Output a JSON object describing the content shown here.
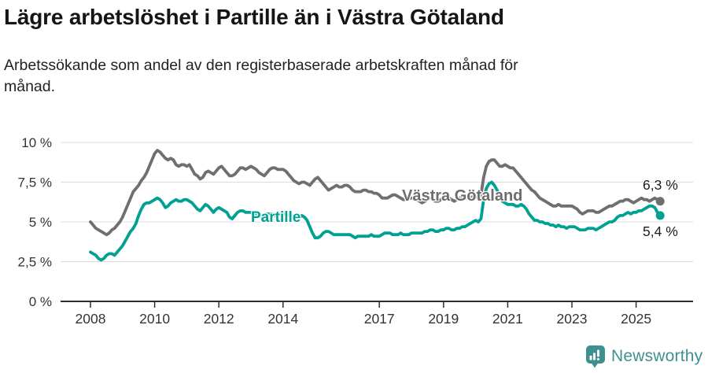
{
  "header": {
    "title": "Lägre arbetslöshet i Partille än i Västra Götaland",
    "subtitle": "Arbetssökande som andel av den registerbaserade arbetskraften månad för\nmånad."
  },
  "chart_data": {
    "type": "line",
    "title": "Lägre arbetslöshet i Partille än i Västra Götaland",
    "x_start": "2008-01",
    "x_end": "2025-10",
    "x_frequency": "monthly",
    "xticks": [
      2008,
      2010,
      2012,
      2014,
      2017,
      2019,
      2021,
      2023,
      2025
    ],
    "yticks": [
      "0 %",
      "2,5 %",
      "5 %",
      "7,5 %",
      "10 %"
    ],
    "ytick_values": [
      0,
      2.5,
      5,
      7.5,
      10
    ],
    "ylim": [
      0,
      10
    ],
    "grid": true,
    "unit": "%",
    "legend_position": "inline-labels",
    "series": [
      {
        "name": "Västra Götaland",
        "color": "#6f6f6f",
        "end_label": "6,3 %",
        "end_value": 6.3,
        "values": [
          5.0,
          4.8,
          4.6,
          4.5,
          4.4,
          4.3,
          4.2,
          4.3,
          4.5,
          4.6,
          4.8,
          5.0,
          5.3,
          5.7,
          6.1,
          6.5,
          6.9,
          7.1,
          7.3,
          7.6,
          7.8,
          8.1,
          8.5,
          8.9,
          9.3,
          9.5,
          9.4,
          9.2,
          9.0,
          8.9,
          9.0,
          8.9,
          8.6,
          8.5,
          8.6,
          8.6,
          8.5,
          8.6,
          8.3,
          8.0,
          7.9,
          7.7,
          7.8,
          8.1,
          8.2,
          8.1,
          8.0,
          8.2,
          8.4,
          8.5,
          8.3,
          8.1,
          7.9,
          7.9,
          8.0,
          8.2,
          8.4,
          8.4,
          8.3,
          8.4,
          8.5,
          8.4,
          8.3,
          8.1,
          8.0,
          7.9,
          8.1,
          8.3,
          8.4,
          8.4,
          8.3,
          8.3,
          8.3,
          8.2,
          8.0,
          7.8,
          7.6,
          7.5,
          7.4,
          7.5,
          7.5,
          7.4,
          7.3,
          7.5,
          7.7,
          7.8,
          7.6,
          7.4,
          7.2,
          7.0,
          7.1,
          7.2,
          7.3,
          7.2,
          7.2,
          7.3,
          7.3,
          7.2,
          7.0,
          6.9,
          6.9,
          6.9,
          7.0,
          7.0,
          6.9,
          6.9,
          6.8,
          6.8,
          6.7,
          6.5,
          6.5,
          6.5,
          6.6,
          6.7,
          6.7,
          6.6,
          6.5,
          6.4,
          6.4,
          6.5,
          6.5,
          6.5,
          6.4,
          6.3,
          6.2,
          6.3,
          6.4,
          6.5,
          6.4,
          6.3,
          6.3,
          6.4,
          6.5,
          6.5,
          6.5,
          6.4,
          6.3,
          6.4,
          6.5,
          6.6,
          6.5,
          6.5,
          6.5,
          6.6,
          6.6,
          6.5,
          6.7,
          7.8,
          8.5,
          8.8,
          8.9,
          8.9,
          8.7,
          8.5,
          8.5,
          8.6,
          8.5,
          8.4,
          8.4,
          8.2,
          8.0,
          7.8,
          7.6,
          7.4,
          7.2,
          7.0,
          6.9,
          6.7,
          6.5,
          6.4,
          6.3,
          6.2,
          6.1,
          6.0,
          6.0,
          6.1,
          6.0,
          6.0,
          6.0,
          6.0,
          6.0,
          5.9,
          5.8,
          5.6,
          5.5,
          5.6,
          5.7,
          5.7,
          5.7,
          5.6,
          5.6,
          5.7,
          5.8,
          5.9,
          6.0,
          6.0,
          6.1,
          6.2,
          6.3,
          6.3,
          6.4,
          6.4,
          6.3,
          6.2,
          6.3,
          6.4,
          6.5,
          6.4,
          6.4,
          6.3,
          6.4,
          6.5,
          6.4,
          6.3
        ]
      },
      {
        "name": "Partille",
        "color": "#00a192",
        "end_label": "5,4 %",
        "end_value": 5.4,
        "values": [
          3.1,
          3.0,
          2.9,
          2.7,
          2.6,
          2.7,
          2.9,
          3.0,
          3.0,
          2.9,
          3.1,
          3.3,
          3.5,
          3.8,
          4.1,
          4.4,
          4.6,
          4.9,
          5.4,
          5.8,
          6.1,
          6.2,
          6.2,
          6.3,
          6.4,
          6.5,
          6.4,
          6.2,
          5.9,
          6.0,
          6.2,
          6.3,
          6.4,
          6.3,
          6.3,
          6.4,
          6.4,
          6.3,
          6.2,
          6.0,
          5.8,
          5.7,
          5.9,
          6.1,
          6.0,
          5.8,
          5.6,
          5.8,
          5.9,
          5.8,
          5.7,
          5.6,
          5.3,
          5.2,
          5.4,
          5.6,
          5.7,
          5.7,
          5.6,
          5.6,
          5.6,
          5.5,
          5.5,
          5.4,
          5.3,
          5.4,
          5.5,
          5.5,
          5.5,
          5.4,
          5.4,
          5.5,
          5.5,
          5.5,
          5.4,
          5.4,
          5.3,
          5.3,
          5.3,
          5.4,
          5.3,
          5.1,
          4.7,
          4.3,
          4.0,
          4.0,
          4.1,
          4.3,
          4.4,
          4.4,
          4.3,
          4.2,
          4.2,
          4.2,
          4.2,
          4.2,
          4.2,
          4.2,
          4.1,
          4.0,
          4.1,
          4.1,
          4.1,
          4.1,
          4.1,
          4.2,
          4.1,
          4.1,
          4.1,
          4.2,
          4.3,
          4.3,
          4.3,
          4.2,
          4.2,
          4.2,
          4.3,
          4.2,
          4.2,
          4.2,
          4.3,
          4.3,
          4.3,
          4.3,
          4.3,
          4.4,
          4.4,
          4.5,
          4.5,
          4.4,
          4.4,
          4.5,
          4.5,
          4.6,
          4.6,
          4.5,
          4.5,
          4.6,
          4.6,
          4.7,
          4.7,
          4.8,
          4.9,
          5.0,
          5.1,
          5.0,
          5.2,
          6.4,
          7.1,
          7.4,
          7.5,
          7.3,
          7.0,
          6.6,
          6.3,
          6.2,
          6.1,
          6.1,
          6.1,
          6.0,
          6.0,
          6.1,
          6.0,
          5.8,
          5.5,
          5.3,
          5.1,
          5.1,
          5.0,
          5.0,
          4.9,
          4.9,
          4.8,
          4.8,
          4.7,
          4.8,
          4.7,
          4.7,
          4.6,
          4.7,
          4.7,
          4.7,
          4.6,
          4.5,
          4.5,
          4.5,
          4.6,
          4.6,
          4.6,
          4.5,
          4.6,
          4.7,
          4.8,
          4.9,
          5.0,
          5.0,
          5.1,
          5.3,
          5.4,
          5.4,
          5.5,
          5.6,
          5.5,
          5.6,
          5.6,
          5.7,
          5.7,
          5.8,
          5.9,
          6.0,
          6.0,
          5.9,
          5.6,
          5.4
        ]
      }
    ]
  },
  "footer": {
    "brand": "Newsworthy"
  },
  "colors": {
    "series_gray": "#6f6f6f",
    "accent_teal": "#00a192",
    "grid": "#dcdcdc",
    "axis": "#2e2e2e",
    "tick_text": "#333333",
    "title_text": "#151515",
    "brand_teal": "#3e908e"
  }
}
